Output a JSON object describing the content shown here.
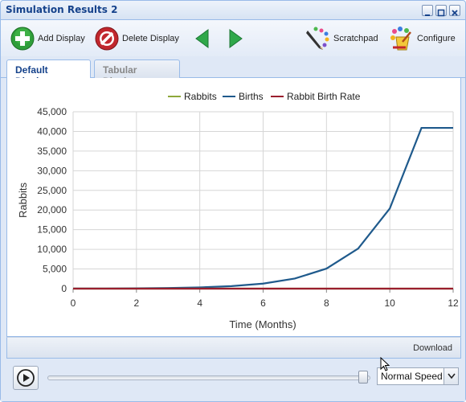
{
  "window": {
    "title": "Simulation Results 2"
  },
  "toolbar": {
    "add_display": "Add Display",
    "delete_display": "Delete Display",
    "scratchpad": "Scratchpad",
    "configure": "Configure"
  },
  "tabs": [
    {
      "label": "Default Display",
      "active": true
    },
    {
      "label": "Tabular Display",
      "active": false
    }
  ],
  "footer": {
    "download": "Download"
  },
  "controls": {
    "speed": "Normal Speed"
  },
  "colors": {
    "rabbits": "#8ea83a",
    "births": "#1f5a8c",
    "birth_rate": "#9a1e2e"
  },
  "chart_data": {
    "type": "line",
    "xlabel": "Time (Months)",
    "ylabel": "Rabbits",
    "xlim": [
      0,
      12
    ],
    "ylim": [
      0,
      45000
    ],
    "x_ticks": [
      0,
      2,
      4,
      6,
      8,
      10,
      12
    ],
    "y_ticks": [
      0,
      5000,
      10000,
      15000,
      20000,
      25000,
      30000,
      35000,
      40000,
      45000
    ],
    "y_tick_labels": [
      "0",
      "5,000",
      "10,000",
      "15,000",
      "20,000",
      "25,000",
      "30,000",
      "35,000",
      "40,000",
      "45,000"
    ],
    "grid": true,
    "legend_position": "top",
    "x": [
      0,
      1,
      2,
      3,
      4,
      5,
      6,
      7,
      8,
      9,
      10,
      11,
      12
    ],
    "series": [
      {
        "name": "Rabbits",
        "color": "#8ea83a",
        "values": [
          0,
          0,
          0,
          0,
          0,
          0,
          0,
          0,
          0,
          0,
          0,
          0,
          0
        ]
      },
      {
        "name": "Births",
        "color": "#1f5a8c",
        "values": [
          20,
          40,
          80,
          160,
          320,
          640,
          1280,
          2560,
          5100,
          10200,
          20400,
          40900,
          40900
        ]
      },
      {
        "name": "Rabbit Birth Rate",
        "color": "#9a1e2e",
        "values": [
          0,
          0,
          0,
          0,
          0,
          0,
          0,
          0,
          0,
          0,
          0,
          0,
          0
        ]
      }
    ]
  }
}
